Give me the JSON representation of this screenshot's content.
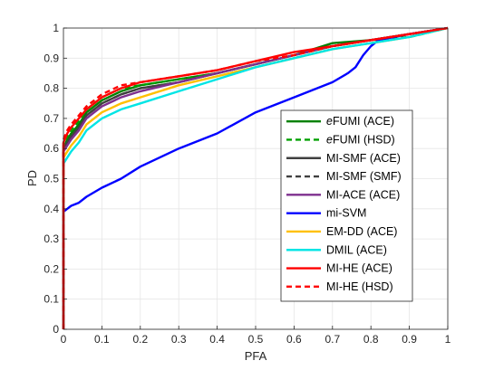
{
  "chart_data": {
    "type": "line",
    "xlabel": "PFA",
    "ylabel": "PD",
    "xlim": [
      0,
      1
    ],
    "ylim": [
      0,
      1
    ],
    "xticks": [
      "0",
      "0.1",
      "0.2",
      "0.3",
      "0.4",
      "0.5",
      "0.6",
      "0.7",
      "0.8",
      "0.9",
      "1"
    ],
    "yticks": [
      "0",
      "0.1",
      "0.2",
      "0.3",
      "0.4",
      "0.5",
      "0.6",
      "0.7",
      "0.8",
      "0.9",
      "1"
    ],
    "grid": true,
    "legend_position": "lower-right",
    "series": [
      {
        "name": "eFUMI (ACE)",
        "name_prefix_italic": "e",
        "name_rest": "FUMI (ACE)",
        "color": "#008000",
        "dash": "solid",
        "points": [
          [
            0,
            0
          ],
          [
            0,
            0.6
          ],
          [
            0.01,
            0.63
          ],
          [
            0.02,
            0.65
          ],
          [
            0.04,
            0.68
          ],
          [
            0.06,
            0.72
          ],
          [
            0.1,
            0.76
          ],
          [
            0.15,
            0.79
          ],
          [
            0.2,
            0.81
          ],
          [
            0.3,
            0.83
          ],
          [
            0.4,
            0.85
          ],
          [
            0.5,
            0.88
          ],
          [
            0.6,
            0.91
          ],
          [
            0.7,
            0.95
          ],
          [
            0.8,
            0.96
          ],
          [
            0.9,
            0.98
          ],
          [
            1,
            1
          ]
        ]
      },
      {
        "name": "eFUMI (HSD)",
        "name_prefix_italic": "e",
        "name_rest": "FUMI (HSD)",
        "color": "#00a000",
        "dash": "dashed",
        "points": [
          [
            0,
            0
          ],
          [
            0,
            0.61
          ],
          [
            0.01,
            0.64
          ],
          [
            0.02,
            0.66
          ],
          [
            0.04,
            0.69
          ],
          [
            0.06,
            0.73
          ],
          [
            0.1,
            0.77
          ],
          [
            0.15,
            0.8
          ],
          [
            0.2,
            0.81
          ],
          [
            0.3,
            0.83
          ],
          [
            0.4,
            0.85
          ],
          [
            0.5,
            0.88
          ],
          [
            0.6,
            0.91
          ],
          [
            0.7,
            0.94
          ],
          [
            0.8,
            0.96
          ],
          [
            0.9,
            0.97
          ],
          [
            1,
            1
          ]
        ]
      },
      {
        "name": "MI-SMF (ACE)",
        "color": "#404040",
        "dash": "solid",
        "points": [
          [
            0,
            0
          ],
          [
            0,
            0.6
          ],
          [
            0.01,
            0.62
          ],
          [
            0.02,
            0.64
          ],
          [
            0.04,
            0.67
          ],
          [
            0.06,
            0.71
          ],
          [
            0.1,
            0.75
          ],
          [
            0.15,
            0.78
          ],
          [
            0.2,
            0.8
          ],
          [
            0.3,
            0.82
          ],
          [
            0.4,
            0.85
          ],
          [
            0.5,
            0.88
          ],
          [
            0.6,
            0.91
          ],
          [
            0.7,
            0.94
          ],
          [
            0.8,
            0.96
          ],
          [
            0.9,
            0.98
          ],
          [
            1,
            1
          ]
        ]
      },
      {
        "name": "MI-SMF (SMF)",
        "color": "#404040",
        "dash": "dashed",
        "points": [
          [
            0,
            0
          ],
          [
            0,
            0.59
          ],
          [
            0.01,
            0.62
          ],
          [
            0.02,
            0.64
          ],
          [
            0.04,
            0.67
          ],
          [
            0.06,
            0.71
          ],
          [
            0.1,
            0.75
          ],
          [
            0.15,
            0.78
          ],
          [
            0.2,
            0.8
          ],
          [
            0.3,
            0.82
          ],
          [
            0.4,
            0.85
          ],
          [
            0.5,
            0.88
          ],
          [
            0.6,
            0.91
          ],
          [
            0.7,
            0.94
          ],
          [
            0.8,
            0.96
          ],
          [
            0.9,
            0.98
          ],
          [
            1,
            1
          ]
        ]
      },
      {
        "name": "MI-ACE (ACE)",
        "color": "#7e2f8e",
        "dash": "solid",
        "points": [
          [
            0,
            0
          ],
          [
            0,
            0.59
          ],
          [
            0.01,
            0.61
          ],
          [
            0.02,
            0.63
          ],
          [
            0.04,
            0.66
          ],
          [
            0.06,
            0.7
          ],
          [
            0.1,
            0.74
          ],
          [
            0.15,
            0.77
          ],
          [
            0.2,
            0.79
          ],
          [
            0.3,
            0.82
          ],
          [
            0.4,
            0.85
          ],
          [
            0.5,
            0.88
          ],
          [
            0.6,
            0.91
          ],
          [
            0.7,
            0.94
          ],
          [
            0.8,
            0.96
          ],
          [
            0.9,
            0.98
          ],
          [
            1,
            1
          ]
        ]
      },
      {
        "name": "mi-SVM",
        "color": "#0000ff",
        "dash": "solid",
        "points": [
          [
            0,
            0
          ],
          [
            0,
            0.39
          ],
          [
            0.01,
            0.4
          ],
          [
            0.02,
            0.41
          ],
          [
            0.04,
            0.42
          ],
          [
            0.06,
            0.44
          ],
          [
            0.1,
            0.47
          ],
          [
            0.15,
            0.5
          ],
          [
            0.2,
            0.54
          ],
          [
            0.3,
            0.6
          ],
          [
            0.4,
            0.65
          ],
          [
            0.5,
            0.72
          ],
          [
            0.6,
            0.77
          ],
          [
            0.7,
            0.82
          ],
          [
            0.74,
            0.85
          ],
          [
            0.76,
            0.87
          ],
          [
            0.78,
            0.91
          ],
          [
            0.8,
            0.94
          ],
          [
            0.82,
            0.96
          ],
          [
            0.9,
            0.98
          ],
          [
            1,
            1
          ]
        ]
      },
      {
        "name": "EM-DD (ACE)",
        "color": "#ffc000",
        "dash": "solid",
        "points": [
          [
            0,
            0
          ],
          [
            0,
            0.57
          ],
          [
            0.01,
            0.59
          ],
          [
            0.02,
            0.61
          ],
          [
            0.04,
            0.64
          ],
          [
            0.06,
            0.68
          ],
          [
            0.1,
            0.72
          ],
          [
            0.15,
            0.75
          ],
          [
            0.2,
            0.77
          ],
          [
            0.3,
            0.81
          ],
          [
            0.4,
            0.84
          ],
          [
            0.5,
            0.87
          ],
          [
            0.6,
            0.9
          ],
          [
            0.7,
            0.93
          ],
          [
            0.8,
            0.95
          ],
          [
            0.9,
            0.97
          ],
          [
            1,
            1
          ]
        ]
      },
      {
        "name": "DMIL (ACE)",
        "color": "#00e5e5",
        "dash": "solid",
        "points": [
          [
            0,
            0
          ],
          [
            0,
            0.55
          ],
          [
            0.01,
            0.57
          ],
          [
            0.02,
            0.59
          ],
          [
            0.04,
            0.62
          ],
          [
            0.06,
            0.66
          ],
          [
            0.1,
            0.7
          ],
          [
            0.15,
            0.73
          ],
          [
            0.2,
            0.75
          ],
          [
            0.3,
            0.79
          ],
          [
            0.4,
            0.83
          ],
          [
            0.5,
            0.87
          ],
          [
            0.6,
            0.9
          ],
          [
            0.7,
            0.93
          ],
          [
            0.8,
            0.95
          ],
          [
            0.9,
            0.97
          ],
          [
            1,
            1
          ]
        ]
      },
      {
        "name": "MI-HE (ACE)",
        "color": "#ff0000",
        "dash": "solid",
        "points": [
          [
            0,
            0
          ],
          [
            0,
            0.62
          ],
          [
            0.01,
            0.65
          ],
          [
            0.02,
            0.67
          ],
          [
            0.04,
            0.7
          ],
          [
            0.06,
            0.73
          ],
          [
            0.1,
            0.77
          ],
          [
            0.15,
            0.8
          ],
          [
            0.2,
            0.82
          ],
          [
            0.3,
            0.84
          ],
          [
            0.4,
            0.86
          ],
          [
            0.5,
            0.89
          ],
          [
            0.6,
            0.92
          ],
          [
            0.7,
            0.94
          ],
          [
            0.8,
            0.96
          ],
          [
            0.9,
            0.98
          ],
          [
            1,
            1
          ]
        ]
      },
      {
        "name": "MI-HE (HSD)",
        "color": "#ff0000",
        "dash": "dashed",
        "points": [
          [
            0,
            0
          ],
          [
            0,
            0.63
          ],
          [
            0.01,
            0.66
          ],
          [
            0.02,
            0.68
          ],
          [
            0.04,
            0.71
          ],
          [
            0.06,
            0.74
          ],
          [
            0.1,
            0.78
          ],
          [
            0.15,
            0.81
          ],
          [
            0.2,
            0.82
          ],
          [
            0.3,
            0.84
          ],
          [
            0.4,
            0.86
          ],
          [
            0.5,
            0.89
          ],
          [
            0.6,
            0.91
          ],
          [
            0.7,
            0.94
          ],
          [
            0.8,
            0.96
          ],
          [
            0.9,
            0.98
          ],
          [
            1,
            1
          ]
        ]
      }
    ]
  }
}
